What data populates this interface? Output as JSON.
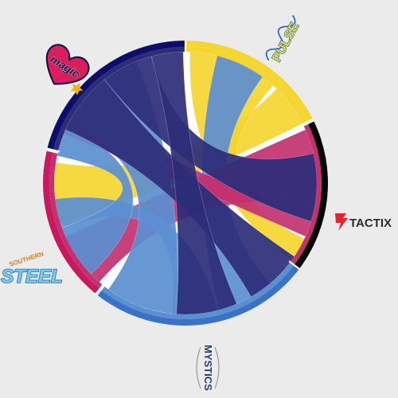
{
  "chart_data": {
    "type": "chord",
    "teams": [
      {
        "name": "PULSE",
        "logo": "pulse-logo",
        "color": "#f5d530",
        "outer": "#f5d530"
      },
      {
        "name": "TACTIX",
        "logo": "tactix-logo",
        "color": "#c23170",
        "outer": "#050505"
      },
      {
        "name": "MYSTICS",
        "logo": "mystics-logo",
        "color": "#5b8fd0",
        "outer": "#3a72c8"
      },
      {
        "name": "SOUTHERN STEEL",
        "logo": "steel-logo",
        "color": "#c23170",
        "outer": "#c8185e"
      },
      {
        "name": "magic",
        "logo": "magic-logo",
        "color": "#2c2c78",
        "outer": "#0e0e6a"
      }
    ],
    "arcs": [
      {
        "team": "PULSE",
        "start": 0,
        "end": 63
      },
      {
        "team": "TACTIX",
        "start": 64,
        "end": 127
      },
      {
        "team": "MYSTICS",
        "start": 127,
        "end": 218
      },
      {
        "team": "SOUTHERN STEEL",
        "start": 219,
        "end": 283
      },
      {
        "team": "magic",
        "start": 284,
        "end": 360
      }
    ],
    "chords": [
      {
        "from": [
          44,
          63
        ],
        "to": [
          252,
          279
        ],
        "color": "#f5d530"
      },
      {
        "from": [
          2,
          42
        ],
        "to": [
          115,
          126
        ],
        "color": "#f5d530"
      },
      {
        "from": [
          14,
          36
        ],
        "to": [
          140,
          165
        ],
        "color": "#5b8fd0"
      },
      {
        "from": [
          66,
          100
        ],
        "to": [
          221,
          246
        ],
        "color": "#c23170"
      },
      {
        "from": [
          100,
          114
        ],
        "to": [
          292,
          308
        ],
        "color": "#c23170"
      },
      {
        "from": [
          166,
          186
        ],
        "to": [
          250,
          263
        ],
        "color": "#5b8fd0"
      },
      {
        "from": [
          184,
          216
        ],
        "to": [
          298,
          338
        ],
        "color": "#5b8fd0"
      },
      {
        "from": [
          226,
          250
        ],
        "to": [
          282,
          296
        ],
        "color": "#5b8fd0"
      },
      {
        "from": [
          294,
          322
        ],
        "to": [
          124,
          150
        ],
        "color": "#2c2c78"
      },
      {
        "from": [
          322,
          345
        ],
        "to": [
          77,
          107
        ],
        "color": "#2c2c78"
      },
      {
        "from": [
          345,
          359
        ],
        "to": [
          157,
          184
        ],
        "color": "#2c2c78"
      }
    ],
    "logos": {
      "pulse": {
        "text": "PULSE",
        "fill": "#f3da2c",
        "stroke": "#1a64c4"
      },
      "tactix": {
        "text": "TACTIX",
        "fill": "#2b2b2b",
        "accent": "#e0262c"
      },
      "mystics": {
        "text": "MYSTICS",
        "fill": "#1a3a7a",
        "accent": "#d0d0d0"
      },
      "steel_top": "SOUTHERN",
      "steel_main": "STEEL",
      "magic": {
        "text": "magic",
        "fill": "#d91e5b",
        "stroke": "#0b1042",
        "star": "#f4b300"
      }
    }
  }
}
